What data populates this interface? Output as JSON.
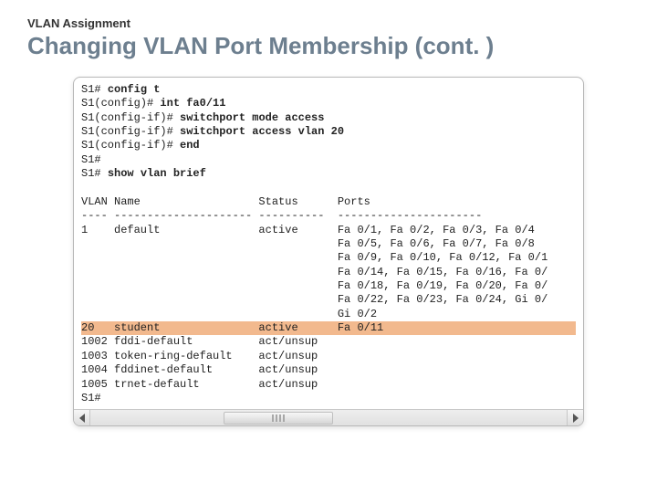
{
  "header": {
    "eyebrow": "VLAN Assignment",
    "title": "Changing VLAN Port Membership (cont. )"
  },
  "terminal": {
    "lines": [
      {
        "prompt": "S1# ",
        "cmd_bold": "config t"
      },
      {
        "prompt": "S1(config)# ",
        "cmd_bold": "int fa0/11"
      },
      {
        "prompt": "S1(config-if)# ",
        "cmd_bold": "switchport mode access"
      },
      {
        "prompt": "S1(config-if)# ",
        "cmd_bold": "switchport access vlan 20"
      },
      {
        "prompt": "S1(config-if)# ",
        "cmd_bold": "end"
      },
      {
        "prompt": "S1#",
        "cmd_bold": ""
      },
      {
        "prompt": "S1# ",
        "cmd_bold": "show vlan brief"
      },
      {
        "blank": " "
      },
      {
        "plain": "VLAN Name                  Status      Ports"
      },
      {
        "plain": "---- --------------------- ----------  ----------------------"
      },
      {
        "plain": "1    default               active      Fa 0/1, Fa 0/2, Fa 0/3, Fa 0/4"
      },
      {
        "plain": "                                       Fa 0/5, Fa 0/6, Fa 0/7, Fa 0/8"
      },
      {
        "plain": "                                       Fa 0/9, Fa 0/10, Fa 0/12, Fa 0/1"
      },
      {
        "plain": "                                       Fa 0/14, Fa 0/15, Fa 0/16, Fa 0/"
      },
      {
        "plain": "                                       Fa 0/18, Fa 0/19, Fa 0/20, Fa 0/"
      },
      {
        "plain": "                                       Fa 0/22, Fa 0/23, Fa 0/24, Gi 0/"
      },
      {
        "plain": "                                       Gi 0/2"
      },
      {
        "plain": "20   student               active      Fa 0/11",
        "highlight": true
      },
      {
        "plain": "1002 fddi-default          act/unsup"
      },
      {
        "plain": "1003 token-ring-default    act/unsup"
      },
      {
        "plain": "1004 fddinet-default       act/unsup"
      },
      {
        "plain": "1005 trnet-default         act/unsup"
      },
      {
        "plain": "S1#"
      }
    ],
    "highlight_color": "#f2b98e"
  },
  "colors": {
    "title": "#6d7f8f",
    "eyebrow": "#333333",
    "background": "#ffffff"
  }
}
